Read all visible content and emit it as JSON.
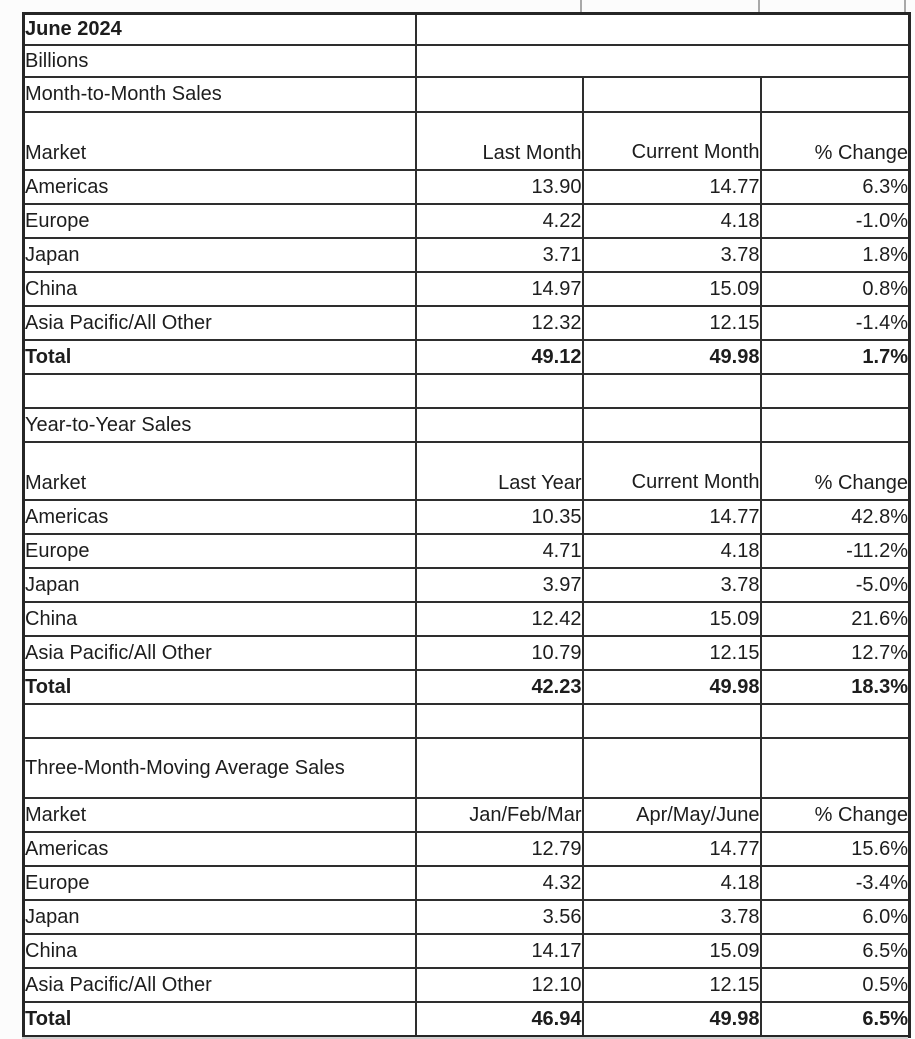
{
  "report": {
    "title": "June 2024",
    "units": "Billions"
  },
  "sections": [
    {
      "title": "Month-to-Month Sales",
      "headers": [
        "Market",
        "Last Month",
        "Current\nMonth",
        "% Change"
      ],
      "rows": [
        [
          "Americas",
          "13.90",
          "14.77",
          "6.3%"
        ],
        [
          "Europe",
          "4.22",
          "4.18",
          "-1.0%"
        ],
        [
          "Japan",
          "3.71",
          "3.78",
          "1.8%"
        ],
        [
          "China",
          "14.97",
          "15.09",
          "0.8%"
        ],
        [
          "Asia Pacific/All Other",
          "12.32",
          "12.15",
          "-1.4%"
        ]
      ],
      "total": [
        "Total",
        "49.12",
        "49.98",
        "1.7%"
      ]
    },
    {
      "title": "Year-to-Year Sales",
      "headers": [
        "Market",
        "Last Year",
        "Current\nMonth",
        "% Change"
      ],
      "rows": [
        [
          "Americas",
          "10.35",
          "14.77",
          "42.8%"
        ],
        [
          "Europe",
          "4.71",
          "4.18",
          "-11.2%"
        ],
        [
          "Japan",
          "3.97",
          "3.78",
          "-5.0%"
        ],
        [
          "China",
          "12.42",
          "15.09",
          "21.6%"
        ],
        [
          "Asia Pacific/All Other",
          "10.79",
          "12.15",
          "12.7%"
        ]
      ],
      "total": [
        "Total",
        "42.23",
        "49.98",
        "18.3%"
      ]
    },
    {
      "title": "Three-Month-Moving Average\nSales",
      "headers": [
        "Market",
        "Jan/Feb/Mar",
        "Apr/May/June",
        "% Change"
      ],
      "rows": [
        [
          "Americas",
          "12.79",
          "14.77",
          "15.6%"
        ],
        [
          "Europe",
          "4.32",
          "4.18",
          "-3.4%"
        ],
        [
          "Japan",
          "3.56",
          "3.78",
          "6.0%"
        ],
        [
          "China",
          "14.17",
          "15.09",
          "6.5%"
        ],
        [
          "Asia Pacific/All Other",
          "12.10",
          "12.15",
          "0.5%"
        ]
      ],
      "total": [
        "Total",
        "46.94",
        "49.98",
        "6.5%"
      ]
    }
  ]
}
